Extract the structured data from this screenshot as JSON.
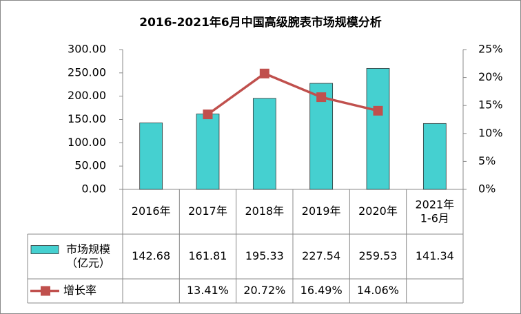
{
  "chart_data": {
    "type": "bar-line",
    "title": "2016-2021年6月中国高级腕表市场规模分析",
    "categories": [
      "2016年",
      "2017年",
      "2018年",
      "2019年",
      "2020年",
      "2021年\n1-6月"
    ],
    "series": [
      {
        "name": "市场规模\n（亿元）",
        "type": "bar",
        "color": "#45d0d0",
        "values": [
          142.68,
          161.81,
          195.33,
          227.54,
          259.53,
          141.34
        ]
      },
      {
        "name": "增长率",
        "type": "line",
        "axis": "y2",
        "color": "#c0504d",
        "values": [
          null,
          13.41,
          20.72,
          16.49,
          14.06,
          null
        ],
        "value_labels": [
          null,
          "13.41%",
          "20.72%",
          "16.49%",
          "14.06%",
          null
        ]
      }
    ],
    "ylim": [
      0,
      300
    ],
    "yticks": [
      {
        "value": 0,
        "label": "0.00"
      },
      {
        "value": 50,
        "label": "50.00"
      },
      {
        "value": 100,
        "label": "100.00"
      },
      {
        "value": 150,
        "label": "150.00"
      },
      {
        "value": 200,
        "label": "200.00"
      },
      {
        "value": 250,
        "label": "250.00"
      },
      {
        "value": 300,
        "label": "300.00"
      }
    ],
    "y2lim": [
      0,
      25
    ],
    "y2ticks": [
      {
        "value": 0,
        "label": "0%"
      },
      {
        "value": 5,
        "label": "5%"
      },
      {
        "value": 10,
        "label": "10%"
      },
      {
        "value": 15,
        "label": "15%"
      },
      {
        "value": 20,
        "label": "20%"
      },
      {
        "value": 25,
        "label": "25%"
      }
    ],
    "grid": false
  }
}
